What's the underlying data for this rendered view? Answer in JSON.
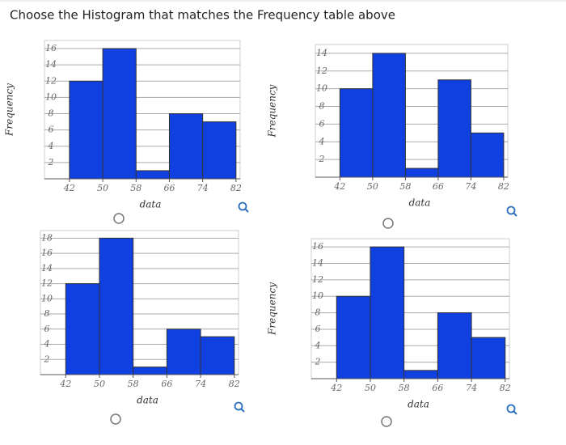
{
  "question": "Choose the Histogram that matches the Frequency table above",
  "chart_data": [
    {
      "type": "histogram",
      "bins": [
        42,
        50,
        58,
        66,
        74,
        82
      ],
      "values": [
        12,
        16,
        1,
        8,
        7
      ],
      "color": "#1040e0",
      "xlabel": "data",
      "ylabel": "Frequency",
      "xlim": [
        36,
        83
      ],
      "xticks": [
        42,
        50,
        58,
        66,
        74,
        82
      ],
      "ylim": [
        0,
        17
      ],
      "yticks": [
        2,
        4,
        6,
        8,
        10,
        12,
        14,
        16
      ],
      "grid": true
    },
    {
      "type": "histogram",
      "bins": [
        42,
        50,
        58,
        66,
        74,
        82
      ],
      "values": [
        10,
        14,
        1,
        11,
        5
      ],
      "color": "#1040e0",
      "xlabel": "data",
      "ylabel": "Frequency",
      "xlim": [
        36,
        83
      ],
      "xticks": [
        42,
        50,
        58,
        66,
        74,
        82
      ],
      "ylim": [
        0,
        15
      ],
      "yticks": [
        2,
        4,
        6,
        8,
        10,
        12,
        14
      ],
      "grid": true
    },
    {
      "type": "histogram",
      "bins": [
        42,
        50,
        58,
        66,
        74,
        82
      ],
      "values": [
        12,
        18,
        1,
        6,
        5
      ],
      "color": "#1040e0",
      "xlabel": "data",
      "xlim": [
        36,
        83
      ],
      "xticks": [
        42,
        50,
        58,
        66,
        74,
        82
      ],
      "ylim": [
        0,
        19
      ],
      "yticks": [
        2,
        4,
        6,
        8,
        10,
        12,
        14,
        16,
        18
      ],
      "grid": true
    },
    {
      "type": "histogram",
      "bins": [
        42,
        50,
        58,
        66,
        74,
        82
      ],
      "values": [
        10,
        16,
        1,
        8,
        5
      ],
      "color": "#1040e0",
      "xlabel": "data",
      "ylabel": "Frequency",
      "xlim": [
        36,
        83
      ],
      "xticks": [
        42,
        50,
        58,
        66,
        74,
        82
      ],
      "ylim": [
        0,
        17
      ],
      "yticks": [
        2,
        4,
        6,
        8,
        10,
        12,
        14,
        16
      ],
      "grid": true
    }
  ]
}
